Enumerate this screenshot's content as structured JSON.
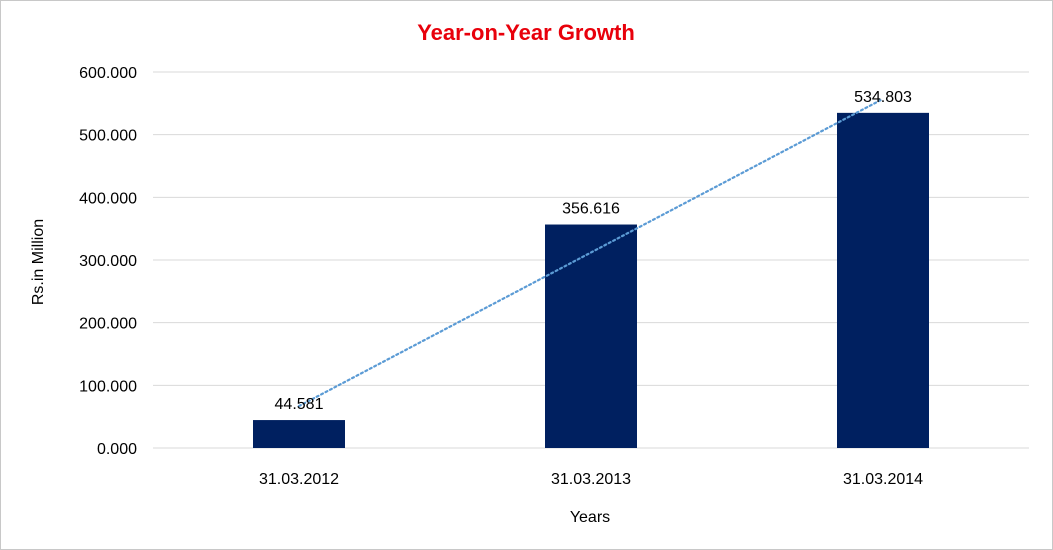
{
  "chart_data": {
    "type": "bar",
    "title": "Year-on-Year Growth",
    "xlabel": "Years",
    "ylabel": "Rs.in Million",
    "categories": [
      "31.03.2012",
      "31.03.2013",
      "31.03.2014"
    ],
    "values": [
      44.581,
      356.616,
      534.803
    ],
    "data_labels": [
      "44.581",
      "356.616",
      "534.803"
    ],
    "y_ticks": [
      0,
      100,
      200,
      300,
      400,
      500,
      600
    ],
    "y_tick_labels": [
      "0.000",
      "100.000",
      "200.000",
      "300.000",
      "400.000",
      "500.000",
      "600.000"
    ],
    "ylim": [
      0,
      600
    ],
    "grid": true,
    "legend": "none",
    "trendline": {
      "type": "linear",
      "style": "dotted"
    },
    "colors": {
      "bar": "#002060",
      "title": "#e8000b",
      "trendline": "#5b9bd5",
      "grid": "#d9d9d9"
    }
  }
}
